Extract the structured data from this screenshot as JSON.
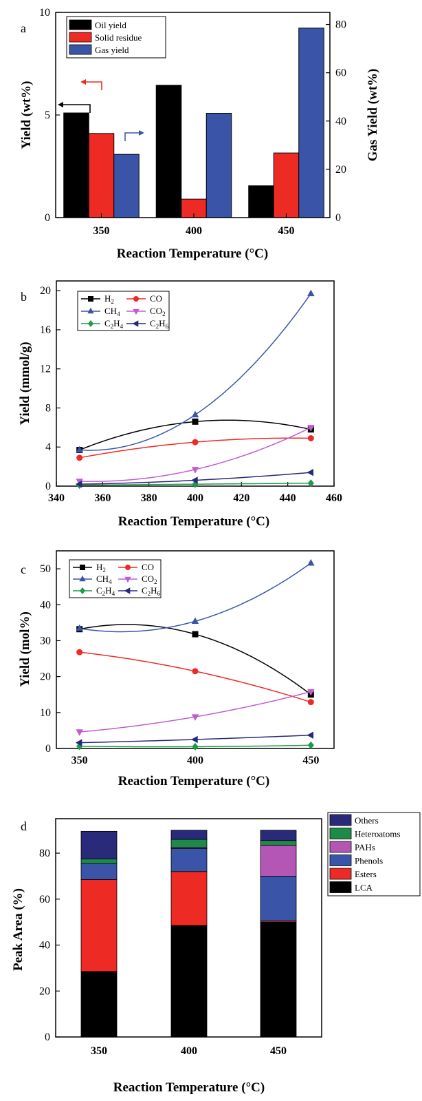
{
  "chart_data": [
    {
      "type": "bar",
      "panel_label": "a",
      "categories": [
        "350",
        "400",
        "450"
      ],
      "xlabel": "Reaction Temperature (°C)",
      "ylabel": "Yield (wt%)",
      "y2label": "Gas Yield (wt%)",
      "ylim": [
        0,
        10
      ],
      "y2lim": [
        0,
        85
      ],
      "yticks": [
        "0",
        "5",
        "10"
      ],
      "y2ticks": [
        "0",
        "20",
        "40",
        "60",
        "80"
      ],
      "legend_position": "top-left",
      "series": [
        {
          "name": "Oil yield",
          "axis": "left",
          "color": "#000000",
          "values": [
            5.1,
            6.45,
            1.55
          ]
        },
        {
          "name": "Solid residue",
          "axis": "left",
          "color": "#ee2a24",
          "values": [
            4.1,
            0.9,
            3.15
          ]
        },
        {
          "name": "Gas yield",
          "axis": "right",
          "color": "#3a55a8",
          "values": [
            26.2,
            43.2,
            78.5
          ]
        }
      ]
    },
    {
      "type": "line",
      "panel_label": "b",
      "x": [
        350,
        400,
        450
      ],
      "xlabel": "Reaction Temperature (°C)",
      "ylabel": "Yield (mmol/g)",
      "xlim": [
        340,
        460
      ],
      "ylim": [
        0,
        21
      ],
      "xticks": [
        "340",
        "360",
        "380",
        "400",
        "420",
        "440",
        "460"
      ],
      "yticks": [
        "0",
        "4",
        "8",
        "12",
        "16",
        "20"
      ],
      "legend_position": "top-left",
      "series": [
        {
          "name": "H2",
          "color": "#000000",
          "marker": "square",
          "values": [
            3.7,
            6.6,
            5.8
          ]
        },
        {
          "name": "CO",
          "color": "#ee2a24",
          "marker": "circle",
          "values": [
            2.9,
            4.5,
            4.9
          ]
        },
        {
          "name": "CH4",
          "color": "#3a55a8",
          "marker": "triangle-up",
          "values": [
            3.7,
            7.3,
            19.7
          ]
        },
        {
          "name": "CO2",
          "color": "#c25bd0",
          "marker": "triangle-down",
          "values": [
            0.5,
            1.7,
            6.0
          ]
        },
        {
          "name": "C2H4",
          "color": "#1e9a48",
          "marker": "diamond",
          "values": [
            0.1,
            0.2,
            0.3
          ]
        },
        {
          "name": "C2H6",
          "color": "#28287a",
          "marker": "triangle-left",
          "values": [
            0.2,
            0.6,
            1.4
          ]
        }
      ]
    },
    {
      "type": "line",
      "panel_label": "c",
      "x": [
        350,
        400,
        450
      ],
      "xlabel": "Reaction Temperature (°C)",
      "ylabel": "Yield (mol%)",
      "xlim": [
        340,
        460
      ],
      "ylim": [
        0,
        55
      ],
      "xticks": [
        "350",
        "400",
        "450"
      ],
      "yticks": [
        "0",
        "10",
        "20",
        "30",
        "40",
        "50"
      ],
      "legend_position": "top-left",
      "series": [
        {
          "name": "H2",
          "color": "#000000",
          "marker": "square",
          "values": [
            33.2,
            31.8,
            15.0
          ]
        },
        {
          "name": "CO",
          "color": "#ee2a24",
          "marker": "circle",
          "values": [
            26.8,
            21.5,
            12.9
          ]
        },
        {
          "name": "CH4",
          "color": "#3a55a8",
          "marker": "triangle-up",
          "values": [
            33.4,
            35.4,
            51.6
          ]
        },
        {
          "name": "CO2",
          "color": "#c25bd0",
          "marker": "triangle-down",
          "values": [
            4.6,
            8.8,
            15.8
          ]
        },
        {
          "name": "C2H4",
          "color": "#1e9a48",
          "marker": "diamond",
          "values": [
            0.6,
            0.5,
            0.9
          ]
        },
        {
          "name": "C2H6",
          "color": "#28287a",
          "marker": "triangle-left",
          "values": [
            1.6,
            2.5,
            3.7
          ]
        }
      ]
    },
    {
      "type": "bar",
      "stacked": true,
      "panel_label": "d",
      "categories": [
        "350",
        "400",
        "450"
      ],
      "xlabel": "Reaction Temperature (°C)",
      "ylabel": "Peak Area (%)",
      "ylim": [
        0,
        95
      ],
      "yticks": [
        "0",
        "20",
        "40",
        "60",
        "80"
      ],
      "legend_position": "top-right",
      "series": [
        {
          "name": "LCA",
          "color": "#000000",
          "values": [
            28.5,
            48.5,
            50.0
          ]
        },
        {
          "name": "Esters",
          "color": "#ee2a24",
          "values": [
            40.0,
            23.5,
            0.5
          ]
        },
        {
          "name": "Phenols",
          "color": "#3a55a8",
          "values": [
            7.0,
            10.0,
            19.5
          ]
        },
        {
          "name": "PAHs",
          "color": "#b457b4",
          "values": [
            0.0,
            0.5,
            13.5
          ]
        },
        {
          "name": "Heteroatoms",
          "color": "#1e8a48",
          "values": [
            2.0,
            3.5,
            2.0
          ]
        },
        {
          "name": "Others",
          "color": "#2a2a7a",
          "values": [
            12.0,
            4.0,
            4.5
          ]
        }
      ]
    }
  ]
}
